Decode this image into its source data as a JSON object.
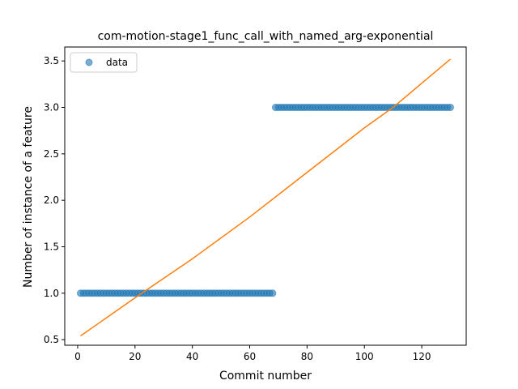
{
  "chart_data": {
    "type": "scatter",
    "title": "com-motion-stage1_func_call_with_named_arg-exponential",
    "xlabel": "Commit number",
    "ylabel": "Number of instance of a feature",
    "xlim": [
      -4.5,
      135.5
    ],
    "ylim": [
      0.44,
      3.65
    ],
    "xticks": [
      0,
      20,
      40,
      60,
      80,
      100,
      120
    ],
    "yticks": [
      0.5,
      1.0,
      1.5,
      2.0,
      2.5,
      3.0,
      3.5
    ],
    "legend": {
      "position": "top-left",
      "entries": [
        "data"
      ]
    },
    "series": [
      {
        "name": "data",
        "kind": "scatter",
        "color": "#1f77b4",
        "segments": [
          {
            "x_start": 1,
            "x_end": 68,
            "y": 1.0
          },
          {
            "x_start": 69,
            "x_end": 130,
            "y": 3.0
          }
        ]
      },
      {
        "kind": "line",
        "color": "#ff7f0e",
        "x": [
          1,
          20,
          40,
          60,
          80,
          100,
          110,
          120,
          130
        ],
        "y": [
          0.54,
          0.95,
          1.37,
          1.82,
          2.3,
          2.78,
          3.0,
          3.26,
          3.52
        ]
      }
    ]
  }
}
